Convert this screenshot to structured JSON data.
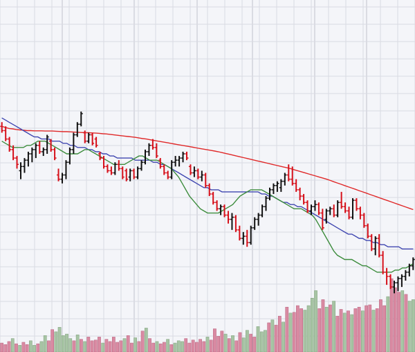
{
  "chart_data": {
    "type": "ohlc",
    "title": "",
    "xlabel": "",
    "ylabel": "",
    "grid": true,
    "legend": "none",
    "price_range": [
      0,
      100
    ],
    "volume_range": [
      0,
      100
    ],
    "colors": {
      "background": "#f4f5f9",
      "grid": "#d9dae3",
      "major_grid": "#c9cad4",
      "up_bar": "#111111",
      "down_bar": "#d6101a",
      "volume_up": "#a7c4a4",
      "volume_down": "#d98aa2",
      "ma_short": "#3c8c3c",
      "ma_mid": "#3f46b0",
      "ma_long": "#e02828"
    },
    "bars": [
      {
        "o": 73,
        "h": 75,
        "l": 70,
        "c": 71
      },
      {
        "o": 71,
        "h": 73,
        "l": 66,
        "c": 67
      },
      {
        "o": 67,
        "h": 68,
        "l": 61,
        "c": 62
      },
      {
        "o": 62,
        "h": 64,
        "l": 57,
        "c": 58
      },
      {
        "o": 58,
        "h": 59,
        "l": 53,
        "c": 55
      },
      {
        "o": 52,
        "h": 56,
        "l": 48,
        "c": 54
      },
      {
        "o": 54,
        "h": 58,
        "l": 51,
        "c": 57
      },
      {
        "o": 57,
        "h": 61,
        "l": 54,
        "c": 60
      },
      {
        "o": 60,
        "h": 63,
        "l": 56,
        "c": 62
      },
      {
        "o": 62,
        "h": 65,
        "l": 58,
        "c": 64
      },
      {
        "o": 64,
        "h": 66,
        "l": 60,
        "c": 61
      },
      {
        "o": 61,
        "h": 63,
        "l": 59,
        "c": 62
      },
      {
        "o": 62,
        "h": 69,
        "l": 60,
        "c": 68
      },
      {
        "o": 66,
        "h": 67,
        "l": 61,
        "c": 62
      },
      {
        "o": 62,
        "h": 63,
        "l": 57,
        "c": 58
      },
      {
        "o": 50,
        "h": 53,
        "l": 47,
        "c": 48
      },
      {
        "o": 48,
        "h": 51,
        "l": 46,
        "c": 50
      },
      {
        "o": 50,
        "h": 57,
        "l": 48,
        "c": 56
      },
      {
        "o": 56,
        "h": 63,
        "l": 55,
        "c": 62
      },
      {
        "o": 62,
        "h": 70,
        "l": 60,
        "c": 69
      },
      {
        "o": 69,
        "h": 75,
        "l": 68,
        "c": 74
      },
      {
        "o": 74,
        "h": 80,
        "l": 73,
        "c": 79
      },
      {
        "o": 70,
        "h": 71,
        "l": 65,
        "c": 66
      },
      {
        "o": 66,
        "h": 70,
        "l": 65,
        "c": 69
      },
      {
        "o": 69,
        "h": 70,
        "l": 64,
        "c": 65
      },
      {
        "o": 67,
        "h": 68,
        "l": 63,
        "c": 64
      },
      {
        "o": 60,
        "h": 61,
        "l": 57,
        "c": 58
      },
      {
        "o": 58,
        "h": 59,
        "l": 53,
        "c": 54
      },
      {
        "o": 54,
        "h": 55,
        "l": 51,
        "c": 52
      },
      {
        "o": 52,
        "h": 54,
        "l": 50,
        "c": 51
      },
      {
        "o": 51,
        "h": 56,
        "l": 50,
        "c": 55
      },
      {
        "o": 55,
        "h": 57,
        "l": 52,
        "c": 53
      },
      {
        "o": 53,
        "h": 54,
        "l": 48,
        "c": 49
      },
      {
        "o": 52,
        "h": 53,
        "l": 47,
        "c": 48
      },
      {
        "o": 49,
        "h": 53,
        "l": 47,
        "c": 52
      },
      {
        "o": 52,
        "h": 53,
        "l": 48,
        "c": 49
      },
      {
        "o": 49,
        "h": 54,
        "l": 48,
        "c": 53
      },
      {
        "o": 53,
        "h": 57,
        "l": 52,
        "c": 56
      },
      {
        "o": 56,
        "h": 62,
        "l": 55,
        "c": 61
      },
      {
        "o": 61,
        "h": 65,
        "l": 59,
        "c": 64
      },
      {
        "o": 64,
        "h": 67,
        "l": 62,
        "c": 63
      },
      {
        "o": 63,
        "h": 65,
        "l": 58,
        "c": 59
      },
      {
        "o": 57,
        "h": 58,
        "l": 53,
        "c": 54
      },
      {
        "o": 54,
        "h": 55,
        "l": 50,
        "c": 51
      },
      {
        "o": 51,
        "h": 52,
        "l": 48,
        "c": 49
      },
      {
        "o": 49,
        "h": 57,
        "l": 48,
        "c": 56
      },
      {
        "o": 56,
        "h": 59,
        "l": 54,
        "c": 57
      },
      {
        "o": 57,
        "h": 59,
        "l": 54,
        "c": 58
      },
      {
        "o": 58,
        "h": 61,
        "l": 56,
        "c": 60
      },
      {
        "o": 60,
        "h": 61,
        "l": 57,
        "c": 58
      },
      {
        "o": 54,
        "h": 55,
        "l": 50,
        "c": 51
      },
      {
        "o": 51,
        "h": 54,
        "l": 49,
        "c": 52
      },
      {
        "o": 52,
        "h": 53,
        "l": 48,
        "c": 49
      },
      {
        "o": 49,
        "h": 52,
        "l": 47,
        "c": 50
      },
      {
        "o": 50,
        "h": 51,
        "l": 44,
        "c": 45
      },
      {
        "o": 45,
        "h": 46,
        "l": 40,
        "c": 41
      },
      {
        "o": 41,
        "h": 42,
        "l": 36,
        "c": 37
      },
      {
        "o": 37,
        "h": 38,
        "l": 33,
        "c": 34
      },
      {
        "o": 34,
        "h": 36,
        "l": 31,
        "c": 35
      },
      {
        "o": 35,
        "h": 36,
        "l": 30,
        "c": 31
      },
      {
        "o": 31,
        "h": 33,
        "l": 27,
        "c": 29
      },
      {
        "o": 29,
        "h": 32,
        "l": 24,
        "c": 30
      },
      {
        "o": 30,
        "h": 31,
        "l": 23,
        "c": 24
      },
      {
        "o": 24,
        "h": 26,
        "l": 19,
        "c": 20
      },
      {
        "o": 20,
        "h": 23,
        "l": 17,
        "c": 21
      },
      {
        "o": 21,
        "h": 24,
        "l": 16,
        "c": 18
      },
      {
        "o": 18,
        "h": 26,
        "l": 17,
        "c": 25
      },
      {
        "o": 25,
        "h": 30,
        "l": 24,
        "c": 29
      },
      {
        "o": 29,
        "h": 32,
        "l": 26,
        "c": 31
      },
      {
        "o": 31,
        "h": 36,
        "l": 30,
        "c": 35
      },
      {
        "o": 35,
        "h": 40,
        "l": 33,
        "c": 39
      },
      {
        "o": 39,
        "h": 44,
        "l": 38,
        "c": 43
      },
      {
        "o": 43,
        "h": 46,
        "l": 41,
        "c": 45
      },
      {
        "o": 45,
        "h": 47,
        "l": 42,
        "c": 46
      },
      {
        "o": 44,
        "h": 48,
        "l": 42,
        "c": 47
      },
      {
        "o": 47,
        "h": 51,
        "l": 45,
        "c": 50
      },
      {
        "o": 50,
        "h": 55,
        "l": 47,
        "c": 48
      },
      {
        "o": 48,
        "h": 54,
        "l": 45,
        "c": 46
      },
      {
        "o": 46,
        "h": 48,
        "l": 42,
        "c": 43
      },
      {
        "o": 43,
        "h": 44,
        "l": 38,
        "c": 40
      },
      {
        "o": 40,
        "h": 41,
        "l": 36,
        "c": 37
      },
      {
        "o": 37,
        "h": 38,
        "l": 32,
        "c": 33
      },
      {
        "o": 33,
        "h": 36,
        "l": 31,
        "c": 35
      },
      {
        "o": 35,
        "h": 38,
        "l": 33,
        "c": 36
      },
      {
        "o": 36,
        "h": 37,
        "l": 31,
        "c": 32
      },
      {
        "o": 32,
        "h": 34,
        "l": 24,
        "c": 25
      },
      {
        "o": 29,
        "h": 34,
        "l": 27,
        "c": 33
      },
      {
        "o": 33,
        "h": 35,
        "l": 31,
        "c": 34
      },
      {
        "o": 34,
        "h": 36,
        "l": 30,
        "c": 31
      },
      {
        "o": 31,
        "h": 38,
        "l": 30,
        "c": 37
      },
      {
        "o": 37,
        "h": 42,
        "l": 34,
        "c": 35
      },
      {
        "o": 35,
        "h": 37,
        "l": 32,
        "c": 33
      },
      {
        "o": 33,
        "h": 35,
        "l": 29,
        "c": 30
      },
      {
        "o": 30,
        "h": 39,
        "l": 29,
        "c": 38
      },
      {
        "o": 38,
        "h": 39,
        "l": 33,
        "c": 34
      },
      {
        "o": 34,
        "h": 35,
        "l": 29,
        "c": 31
      },
      {
        "o": 31,
        "h": 32,
        "l": 25,
        "c": 26
      },
      {
        "o": 26,
        "h": 27,
        "l": 20,
        "c": 21
      },
      {
        "o": 21,
        "h": 22,
        "l": 14,
        "c": 15
      },
      {
        "o": 15,
        "h": 21,
        "l": 12,
        "c": 20
      },
      {
        "o": 20,
        "h": 22,
        "l": 11,
        "c": 12
      },
      {
        "o": 12,
        "h": 14,
        "l": 3,
        "c": 4
      },
      {
        "o": 4,
        "h": 6,
        "l": -2,
        "c": 2
      },
      {
        "o": 2,
        "h": 3,
        "l": -4,
        "c": -3
      },
      {
        "o": -3,
        "h": 0,
        "l": -6,
        "c": -1
      },
      {
        "o": -1,
        "h": 2,
        "l": -5,
        "c": 1
      },
      {
        "o": 1,
        "h": 3,
        "l": -3,
        "c": 2
      },
      {
        "o": 2,
        "h": 5,
        "l": 0,
        "c": 4
      },
      {
        "o": 4,
        "h": 8,
        "l": 2,
        "c": 7
      },
      {
        "o": 7,
        "h": 11,
        "l": 5,
        "c": 10
      }
    ],
    "volume": [
      {
        "v": 12,
        "up": false
      },
      {
        "v": 10,
        "up": false
      },
      {
        "v": 14,
        "up": false
      },
      {
        "v": 18,
        "up": true
      },
      {
        "v": 11,
        "up": false
      },
      {
        "v": 9,
        "up": true
      },
      {
        "v": 13,
        "up": false
      },
      {
        "v": 10,
        "up": false
      },
      {
        "v": 15,
        "up": true
      },
      {
        "v": 9,
        "up": true
      },
      {
        "v": 11,
        "up": false
      },
      {
        "v": 14,
        "up": true
      },
      {
        "v": 22,
        "up": true
      },
      {
        "v": 15,
        "up": false
      },
      {
        "v": 30,
        "up": false
      },
      {
        "v": 27,
        "up": true
      },
      {
        "v": 33,
        "up": true
      },
      {
        "v": 22,
        "up": true
      },
      {
        "v": 24,
        "up": true
      },
      {
        "v": 18,
        "up": true
      },
      {
        "v": 15,
        "up": false
      },
      {
        "v": 23,
        "up": true
      },
      {
        "v": 17,
        "up": false
      },
      {
        "v": 14,
        "up": true
      },
      {
        "v": 20,
        "up": false
      },
      {
        "v": 15,
        "up": false
      },
      {
        "v": 16,
        "up": false
      },
      {
        "v": 20,
        "up": false
      },
      {
        "v": 12,
        "up": true
      },
      {
        "v": 17,
        "up": false
      },
      {
        "v": 14,
        "up": false
      },
      {
        "v": 20,
        "up": false
      },
      {
        "v": 13,
        "up": false
      },
      {
        "v": 15,
        "up": false
      },
      {
        "v": 18,
        "up": true
      },
      {
        "v": 22,
        "up": false
      },
      {
        "v": 12,
        "up": false
      },
      {
        "v": 19,
        "up": true
      },
      {
        "v": 14,
        "up": false
      },
      {
        "v": 28,
        "up": false
      },
      {
        "v": 32,
        "up": true
      },
      {
        "v": 18,
        "up": false
      },
      {
        "v": 12,
        "up": false
      },
      {
        "v": 14,
        "up": true
      },
      {
        "v": 11,
        "up": false
      },
      {
        "v": 13,
        "up": false
      },
      {
        "v": 17,
        "up": true
      },
      {
        "v": 10,
        "up": false
      },
      {
        "v": 12,
        "up": true
      },
      {
        "v": 15,
        "up": true
      },
      {
        "v": 14,
        "up": true
      },
      {
        "v": 18,
        "up": false
      },
      {
        "v": 12,
        "up": false
      },
      {
        "v": 16,
        "up": false
      },
      {
        "v": 13,
        "up": false
      },
      {
        "v": 17,
        "up": false
      },
      {
        "v": 14,
        "up": false
      },
      {
        "v": 20,
        "up": true
      },
      {
        "v": 16,
        "up": false
      },
      {
        "v": 31,
        "up": false
      },
      {
        "v": 21,
        "up": false
      },
      {
        "v": 28,
        "up": false
      },
      {
        "v": 24,
        "up": true
      },
      {
        "v": 18,
        "up": false
      },
      {
        "v": 22,
        "up": true
      },
      {
        "v": 15,
        "up": false
      },
      {
        "v": 26,
        "up": false
      },
      {
        "v": 19,
        "up": true
      },
      {
        "v": 29,
        "up": true
      },
      {
        "v": 24,
        "up": false
      },
      {
        "v": 20,
        "up": false
      },
      {
        "v": 34,
        "up": true
      },
      {
        "v": 27,
        "up": true
      },
      {
        "v": 29,
        "up": true
      },
      {
        "v": 39,
        "up": false
      },
      {
        "v": 43,
        "up": true
      },
      {
        "v": 36,
        "up": false
      },
      {
        "v": 48,
        "up": false
      },
      {
        "v": 40,
        "up": true
      },
      {
        "v": 60,
        "up": false
      },
      {
        "v": 52,
        "up": true
      },
      {
        "v": 53,
        "up": false
      },
      {
        "v": 62,
        "up": false
      },
      {
        "v": 58,
        "up": false
      },
      {
        "v": 56,
        "up": true
      },
      {
        "v": 62,
        "up": true
      },
      {
        "v": 72,
        "up": true
      },
      {
        "v": 82,
        "up": true
      },
      {
        "v": 58,
        "up": false
      },
      {
        "v": 70,
        "up": false
      },
      {
        "v": 60,
        "up": true
      },
      {
        "v": 63,
        "up": false
      },
      {
        "v": 68,
        "up": true
      },
      {
        "v": 48,
        "up": false
      },
      {
        "v": 57,
        "up": false
      },
      {
        "v": 52,
        "up": true
      },
      {
        "v": 55,
        "up": false
      },
      {
        "v": 50,
        "up": true
      },
      {
        "v": 58,
        "up": false
      },
      {
        "v": 60,
        "up": false
      },
      {
        "v": 55,
        "up": true
      },
      {
        "v": 62,
        "up": false
      },
      {
        "v": 63,
        "up": false
      },
      {
        "v": 56,
        "up": true
      },
      {
        "v": 58,
        "up": false
      },
      {
        "v": 70,
        "up": false
      },
      {
        "v": 62,
        "up": false
      },
      {
        "v": 74,
        "up": true
      },
      {
        "v": 98,
        "up": false
      },
      {
        "v": 86,
        "up": false
      },
      {
        "v": 80,
        "up": false
      },
      {
        "v": 82,
        "up": true
      },
      {
        "v": 77,
        "up": false
      },
      {
        "v": 68,
        "up": true
      },
      {
        "v": 70,
        "up": true
      }
    ],
    "moving_averages": [
      {
        "name": "",
        "color": "#3c8c3c",
        "period": 20
      },
      {
        "name": "",
        "color": "#3f46b0",
        "period": 50
      },
      {
        "name": "",
        "color": "#e02828",
        "period": 200
      }
    ],
    "ma_short_values": [
      66,
      65,
      64,
      63,
      63,
      63,
      63,
      64,
      64,
      65,
      66,
      66,
      66,
      65,
      64,
      63,
      62,
      61,
      60,
      60,
      60,
      60,
      61,
      62,
      62,
      61,
      60,
      59,
      58,
      57,
      56,
      55,
      55,
      55,
      55,
      56,
      57,
      58,
      59,
      59,
      58,
      57,
      57,
      57,
      56,
      55,
      54,
      53,
      51,
      49,
      46,
      43,
      40,
      38,
      36,
      34,
      33,
      32,
      32,
      32,
      32,
      33,
      34,
      35,
      36,
      38,
      40,
      41,
      42,
      43,
      43,
      43,
      43,
      42,
      41,
      40,
      39,
      38,
      37,
      36,
      35,
      34,
      34,
      34,
      33,
      32,
      31,
      29,
      26,
      23,
      20,
      17,
      14,
      12,
      11,
      10,
      10,
      10,
      9,
      8,
      7,
      7,
      6,
      5,
      4,
      4,
      4,
      4,
      4,
      5,
      5,
      6,
      6,
      7,
      8
    ],
    "ma_mid_values": [
      77,
      76,
      75,
      74,
      73,
      72,
      71,
      70,
      69,
      68,
      68,
      67,
      67,
      67,
      66,
      66,
      66,
      65,
      65,
      64,
      64,
      63,
      63,
      63,
      62,
      62,
      61,
      61,
      60,
      60,
      59,
      59,
      58,
      58,
      58,
      58,
      58,
      57,
      57,
      57,
      57,
      57,
      56,
      56,
      55,
      55,
      54,
      53,
      52,
      51,
      50,
      49,
      48,
      47,
      46,
      45,
      44,
      44,
      43,
      43,
      43,
      42,
      42,
      42,
      42,
      42,
      42,
      42,
      42,
      42,
      42,
      42,
      41,
      41,
      40,
      40,
      39,
      38,
      37,
      37,
      36,
      36,
      35,
      35,
      34,
      33,
      32,
      31,
      30,
      29,
      28,
      27,
      26,
      25,
      24,
      23,
      22,
      22,
      21,
      20,
      20,
      19,
      19,
      18,
      18,
      17,
      17,
      16,
      16,
      16,
      16,
      15,
      15,
      15,
      15
    ],
    "ma_long_values": [
      73,
      72.5,
      72,
      71.8,
      71.5,
      71.3,
      71.2,
      71,
      71,
      70.9,
      70.9,
      70.9,
      70.8,
      70.8,
      70.8,
      70.7,
      70.6,
      70.5,
      70.5,
      70.4,
      70.3,
      70.2,
      70.1,
      70,
      70,
      69.9,
      69.8,
      69.7,
      69.5,
      69.4,
      69.2,
      69,
      68.8,
      68.6,
      68.4,
      68.2,
      68,
      67.8,
      67.5,
      67.2,
      67,
      66.7,
      66.4,
      66.1,
      65.8,
      65.5,
      65.2,
      64.9,
      64.6,
      64.3,
      64,
      63.7,
      63.4,
      63.1,
      62.8,
      62.5,
      62.2,
      61.9,
      61.6,
      61.3,
      61,
      60.6,
      60.2,
      59.8,
      59.4,
      59,
      58.6,
      58.2,
      57.8,
      57.4,
      57,
      56.6,
      56.2,
      55.8,
      55.4,
      55,
      54.6,
      54.2,
      53.8,
      53.4,
      53,
      52.5,
      52,
      51.5,
      51,
      50.5,
      50,
      49.5,
      49,
      48.5,
      48,
      47.4,
      46.8,
      46.2,
      45.6,
      45,
      44.4,
      43.8,
      43.2,
      42.6,
      42,
      41.4,
      40.8,
      40.2,
      39.6,
      39,
      38.4,
      37.8,
      37.2,
      36.6,
      36,
      35.4,
      34.8,
      34.2,
      33.6
    ]
  }
}
